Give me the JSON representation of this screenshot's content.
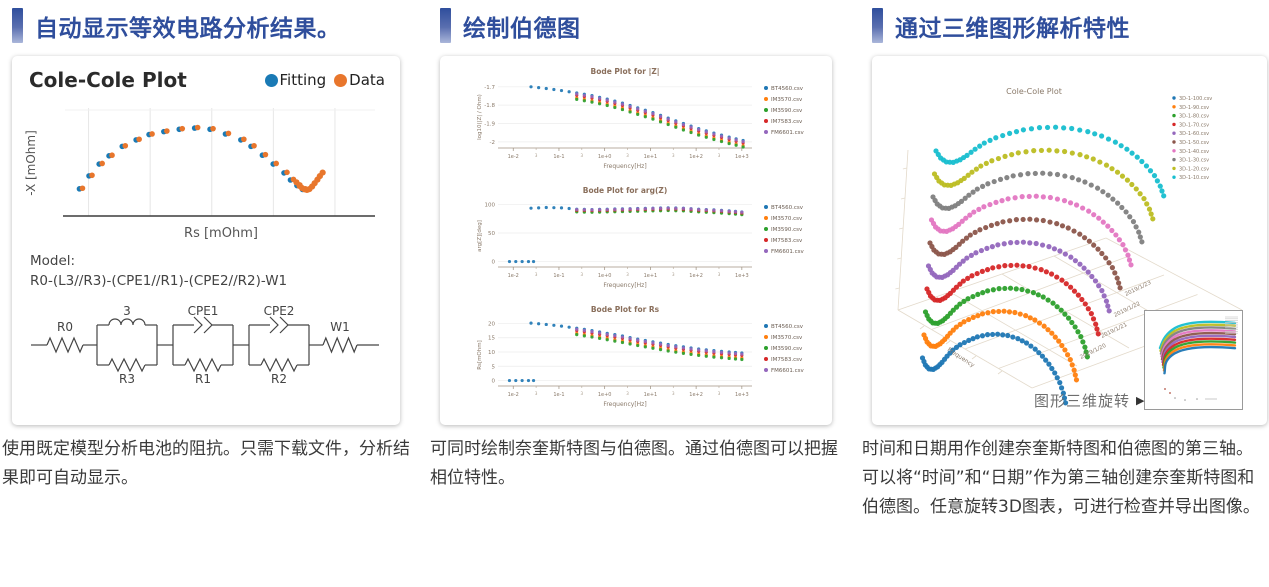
{
  "sections": [
    {
      "title": "自动显示等效电路分析结果。",
      "caption": "使用既定模型分析电池的阻抗。只需下载文件，分析结果即可自动显示。"
    },
    {
      "title": "绘制伯德图",
      "caption": "可同时绘制奈奎斯特图与伯德图。通过伯德图可以把握相位特性。"
    },
    {
      "title": "通过三维图形解析特性",
      "caption": "时间和日期用作创建奈奎斯特图和伯德图的第三轴。",
      "caption2": "可以将“时间”和“日期”作为第三轴创建奈奎斯特图和伯德图。任意旋转3D图表，可进行检查并导出图像。"
    }
  ],
  "colors": {
    "accent": "#2f4e9c",
    "fitting_blue": "#1a7ab5",
    "data_orange": "#e8762c"
  },
  "model": {
    "label": "Model:",
    "formula": "R0-(L3//R3)-(CPE1//R1)-(CPE2//R2)-W1"
  },
  "circuit": {
    "labels": {
      "r0": "R0",
      "l": "3",
      "r3": "R3",
      "cpe1": "CPE1",
      "r1": "R1",
      "cpe2": "CPE2",
      "r2": "R2",
      "w1": "W1"
    }
  },
  "rotate": {
    "label": "图形三维旋转",
    "icon": "▶"
  },
  "bode_files": [
    {
      "name": "BT4560.csv",
      "color": "#1f77b4"
    },
    {
      "name": "IM3570.csv",
      "color": "#ff7f0e"
    },
    {
      "name": "IM3590.csv",
      "color": "#2ca02c"
    },
    {
      "name": "IM7583.csv",
      "color": "#d62728"
    },
    {
      "name": "FM6601.csv",
      "color": "#9467bd"
    }
  ],
  "chart_data": [
    {
      "id": "cole",
      "type": "scatter",
      "title": "Cole-Cole Plot",
      "xlabel": "Rs [mOhm]",
      "ylabel": "-X [mOhm]",
      "legend_position": "top-right",
      "grid": "vertical-light",
      "series": [
        {
          "name": "Fitting",
          "color": "#1a7ab5"
        },
        {
          "name": "Data",
          "color": "#e8762c"
        }
      ],
      "points": [
        [
          0.046,
          0.23
        ],
        [
          0.077,
          0.34
        ],
        [
          0.11,
          0.44
        ],
        [
          0.142,
          0.51
        ],
        [
          0.185,
          0.59
        ],
        [
          0.23,
          0.645
        ],
        [
          0.272,
          0.69
        ],
        [
          0.32,
          0.715
        ],
        [
          0.37,
          0.735
        ],
        [
          0.42,
          0.745
        ],
        [
          0.47,
          0.735
        ],
        [
          0.52,
          0.695
        ],
        [
          0.57,
          0.645
        ],
        [
          0.603,
          0.59
        ],
        [
          0.64,
          0.515
        ],
        [
          0.675,
          0.44
        ],
        [
          0.71,
          0.365
        ],
        [
          0.731,
          0.305
        ],
        [
          0.752,
          0.258
        ],
        [
          0.77,
          0.225
        ]
      ],
      "tail": [
        [
          0.745,
          0.285
        ],
        [
          0.755,
          0.255
        ],
        [
          0.763,
          0.237
        ],
        [
          0.771,
          0.226
        ],
        [
          0.779,
          0.221
        ],
        [
          0.787,
          0.228
        ],
        [
          0.796,
          0.25
        ],
        [
          0.804,
          0.278
        ],
        [
          0.813,
          0.308
        ],
        [
          0.821,
          0.338
        ],
        [
          0.83,
          0.368
        ]
      ],
      "gridx": [
        0.07,
        0.27,
        0.47,
        0.67,
        0.87
      ]
    },
    {
      "id": "bode_z",
      "type": "scatter",
      "title": "Bode Plot for |Z|",
      "xlabel": "Frequency[Hz]",
      "ylabel": "log10(|Z| / Ohm)",
      "xticks": [
        "1e-2",
        "1e-1",
        "1e+0",
        "1e+1",
        "1e+2",
        "1e+3"
      ],
      "yticks": [
        [
          "-1.7",
          0.1
        ],
        [
          "-1.8",
          0.37
        ],
        [
          "-1.9",
          0.64
        ],
        [
          "-2",
          0.91
        ]
      ],
      "base": [
        [
          0.13,
          0.1
        ],
        [
          0.19,
          0.125
        ],
        [
          0.25,
          0.155
        ],
        [
          0.31,
          0.19
        ],
        [
          0.37,
          0.23
        ],
        [
          0.43,
          0.28
        ],
        [
          0.49,
          0.34
        ],
        [
          0.55,
          0.41
        ],
        [
          0.61,
          0.48
        ],
        [
          0.67,
          0.56
        ],
        [
          0.73,
          0.64
        ],
        [
          0.79,
          0.715
        ],
        [
          0.85,
          0.78
        ],
        [
          0.91,
          0.84
        ],
        [
          0.965,
          0.89
        ]
      ],
      "mods": [
        {
          "xmin": 0.13,
          "dy": 0
        },
        {
          "xmin": 0.3,
          "dy": 0.075
        },
        {
          "xmin": 0.3,
          "dy": 0.095
        },
        {
          "xmin": 0.29,
          "dy": 0.035
        },
        {
          "xmin": 0.31,
          "dy": 0.015
        }
      ]
    },
    {
      "id": "bode_arg",
      "type": "scatter",
      "title": "Bode Plot for arg(Z)",
      "xlabel": "Frequency[Hz]",
      "ylabel": "arg[Z][deg]",
      "xticks": [
        "1e-2",
        "1e-1",
        "1e+0",
        "1e+1",
        "1e+2",
        "1e+3"
      ],
      "yticks": [
        [
          "100",
          0.08
        ],
        [
          "50",
          0.5
        ],
        [
          "0",
          0.92
        ]
      ],
      "base": [
        [
          0.13,
          0.135
        ],
        [
          0.19,
          0.125
        ],
        [
          0.25,
          0.13
        ],
        [
          0.31,
          0.15
        ],
        [
          0.37,
          0.155
        ],
        [
          0.43,
          0.15
        ],
        [
          0.49,
          0.145
        ],
        [
          0.55,
          0.14
        ],
        [
          0.61,
          0.135
        ],
        [
          0.67,
          0.13
        ],
        [
          0.73,
          0.135
        ],
        [
          0.79,
          0.15
        ],
        [
          0.85,
          0.16
        ],
        [
          0.91,
          0.175
        ],
        [
          0.96,
          0.19
        ]
      ],
      "mods": [
        {
          "xmin": 0.13,
          "dy": 0
        },
        {
          "xmin": 0.3,
          "dy": 0.03
        },
        {
          "xmin": 0.3,
          "dy": 0.04
        },
        {
          "xmin": 0.29,
          "dy": 0.015
        },
        {
          "xmin": 0.31,
          "dy": 0.005
        }
      ],
      "blue_low": [
        [
          0.045,
          0.92
        ],
        [
          0.07,
          0.92
        ],
        [
          0.095,
          0.92
        ],
        [
          0.12,
          0.92
        ],
        [
          0.14,
          0.92
        ]
      ]
    },
    {
      "id": "bode_rs",
      "type": "scatter",
      "title": "Bode Plot for Rs",
      "xlabel": "Frequency[Hz]",
      "ylabel": "Rs[mOhm]",
      "xticks": [
        "1e-2",
        "1e-1",
        "1e+0",
        "1e+1",
        "1e+2",
        "1e+3"
      ],
      "yticks": [
        [
          "20",
          0.08
        ],
        [
          "15",
          0.29
        ],
        [
          "10",
          0.5
        ],
        [
          "5",
          0.71
        ],
        [
          "0",
          0.92
        ]
      ],
      "base": [
        [
          0.13,
          0.075
        ],
        [
          0.19,
          0.095
        ],
        [
          0.25,
          0.12
        ],
        [
          0.31,
          0.15
        ],
        [
          0.37,
          0.185
        ],
        [
          0.43,
          0.225
        ],
        [
          0.49,
          0.265
        ],
        [
          0.55,
          0.31
        ],
        [
          0.61,
          0.35
        ],
        [
          0.67,
          0.39
        ],
        [
          0.73,
          0.425
        ],
        [
          0.79,
          0.455
        ],
        [
          0.85,
          0.48
        ],
        [
          0.91,
          0.5
        ],
        [
          0.96,
          0.515
        ]
      ],
      "mods": [
        {
          "xmin": 0.13,
          "dy": 0
        },
        {
          "xmin": 0.3,
          "dy": 0.075
        },
        {
          "xmin": 0.3,
          "dy": 0.095
        },
        {
          "xmin": 0.29,
          "dy": 0.035
        },
        {
          "xmin": 0.31,
          "dy": 0.015
        }
      ],
      "blue_low": [
        [
          0.045,
          0.92
        ],
        [
          0.07,
          0.92
        ],
        [
          0.095,
          0.92
        ],
        [
          0.12,
          0.92
        ],
        [
          0.14,
          0.92
        ]
      ]
    },
    {
      "id": "plot3d",
      "type": "scatter3d",
      "title": "Cole-Cole Plot",
      "series": [
        {
          "name": "3D-1-100.csv",
          "color": "#1f77b4"
        },
        {
          "name": "3D-1-90.csv",
          "color": "#ff7f0e"
        },
        {
          "name": "3D-1-80.csv",
          "color": "#2ca02c"
        },
        {
          "name": "3D-1-70.csv",
          "color": "#d62728"
        },
        {
          "name": "3D-1-60.csv",
          "color": "#9467bd"
        },
        {
          "name": "3D-1-50.csv",
          "color": "#8c564b"
        },
        {
          "name": "3D-1-40.csv",
          "color": "#e377c2"
        },
        {
          "name": "3D-1-30.csv",
          "color": "#7f7f7f"
        },
        {
          "name": "3D-1-20.csv",
          "color": "#bcbd22"
        },
        {
          "name": "3D-1-10.csv",
          "color": "#17becf"
        }
      ],
      "date_axis": {
        "label": "Date",
        "ticks": [
          "2019/1/23",
          "2019/1/22",
          "2019/1/21",
          "2019/1/20"
        ]
      },
      "freq_axis": {
        "label": "Frequency"
      },
      "arc": [
        [
          0.0,
          0.42
        ],
        [
          0.02,
          0.5
        ],
        [
          0.045,
          0.545
        ],
        [
          0.075,
          0.55
        ],
        [
          0.105,
          0.52
        ],
        [
          0.135,
          0.47
        ],
        [
          0.17,
          0.4
        ],
        [
          0.21,
          0.33
        ],
        [
          0.26,
          0.27
        ],
        [
          0.32,
          0.22
        ],
        [
          0.38,
          0.18
        ],
        [
          0.45,
          0.155
        ],
        [
          0.52,
          0.15
        ],
        [
          0.59,
          0.165
        ],
        [
          0.66,
          0.2
        ],
        [
          0.72,
          0.25
        ],
        [
          0.78,
          0.32
        ],
        [
          0.83,
          0.4
        ],
        [
          0.875,
          0.49
        ],
        [
          0.915,
          0.59
        ],
        [
          0.95,
          0.7
        ],
        [
          0.975,
          0.82
        ],
        [
          0.99,
          0.93
        ]
      ]
    }
  ]
}
